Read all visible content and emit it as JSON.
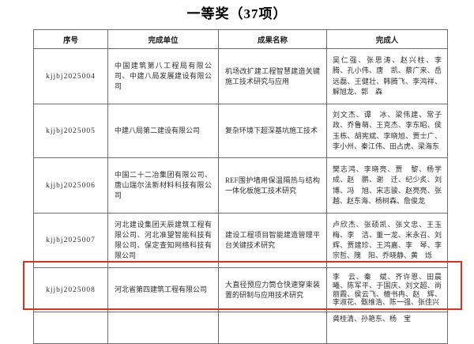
{
  "title": "一等奖（37项）",
  "highlight_color": "#e0301e",
  "table": {
    "headers": [
      "序号",
      "完成单位",
      "成果名称",
      "完成人"
    ],
    "rows": [
      {
        "serial": "kjjbj2025004",
        "unit": "中国建筑第八工程局有限公司、中建八局发展建设有限公司",
        "result": "机场改扩建工程智慧建造关键施工技术研究与应用",
        "people": "吴仁强、张思涛、赵兴柱、李　腾、孔小伟、唐　凯、蔡广来、岳远磊、王健壮、韩腾飞、李鸿祥、解旭龙、郭　森"
      },
      {
        "serial": "kjjbj2025005",
        "unit": "中建八局第二建设有限公司",
        "result": "复杂环境下超深基坑施工技术",
        "people": "刘文杰、谭　冰、梁伟建、常子政、乔鲁萌、王克杰、李东昭、侯玉栋、胡宪斌、李晓旭、贾士广、李小州、秦江伟、田占虎、梁海东"
      },
      {
        "serial": "kjjbj2025006",
        "unit": "中国二十二冶集团有限公司、唐山瑞尔法新材料科技有限公司",
        "result": "REF围护墙用保温隔热与结构一体化板施工技术研究",
        "people": "樊志鸿、李晓亮、贾　黎、杨学成、赵　鹏、谢　迁、纪少炙、刘　博、冯　旭、宋志骏、赵亮亮、张　越、赵东海、杨树森、詹俊龙"
      },
      {
        "serial": "kjjbj2025007",
        "unit": "河北建设集团天辰建筑工程有限公司、河北准望智能科技有限公司、保定查知网络科技有限公司",
        "result": "建设工程项目智能建造管理平台关键技术研究",
        "people": "卢欣杰、张硕凯、张文忠、王玉梅、李　洁、董一龙、米永召、刘　辉、贾建珍、王鸿嘉、李　琴、李宗哲、隗　阳、乔晓静、黄　烁"
      },
      {
        "serial": "kjjbj2025008",
        "unit": "河北省第四建筑工程有限公司",
        "result": "大直径预应力筒仓快速穿束装置的研制与应用技术研究",
        "people": "李　云、秦　斌、齐许恩、田晨曦、陈军平、于国庆、刘文超、尚丽霞、侯云飞、檀书冉、赵　辉、李淑花、甄维浩、陈一强、张佳兴",
        "highlighted": true
      },
      {
        "serial": "",
        "unit": "",
        "result": "",
        "people": "龚桂清、孙艳东、杨　宝"
      }
    ]
  }
}
